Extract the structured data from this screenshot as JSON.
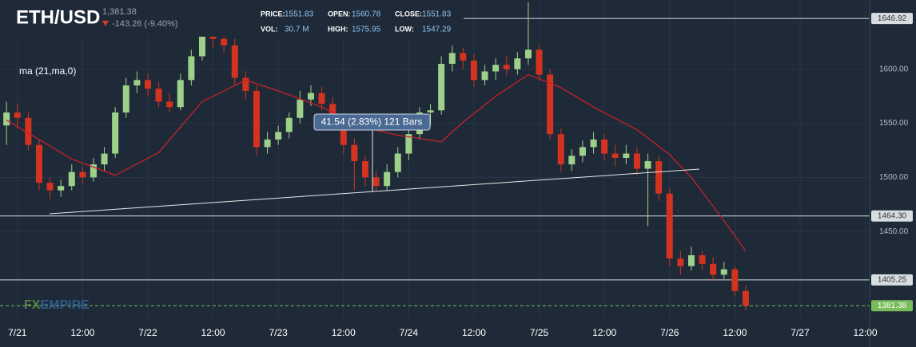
{
  "header": {
    "symbol": "ETH/USD",
    "last": "1,381.38",
    "change": "-143.26 (-9.40%)",
    "stats": [
      {
        "label": "PRICE:",
        "value": "1551.83"
      },
      {
        "label": "OPEN:",
        "value": "1560.78"
      },
      {
        "label": "CLOSE:",
        "value": "1551.83"
      },
      {
        "label": "VOL:",
        "value": "30.7 M"
      },
      {
        "label": "HIGH:",
        "value": "1575.95"
      },
      {
        "label": "LOW:",
        "value": "1547.29"
      }
    ]
  },
  "watermark": [
    "FX",
    "EMPIRE"
  ],
  "measure": "41.54 (2.83%) 121 Bars",
  "chart_data": {
    "type": "candlestick",
    "up_color": "#9fd08a",
    "down_color": "#d3331f",
    "open": [
      1548,
      1560,
      1555,
      1530,
      1495,
      1488,
      1492,
      1505,
      1500,
      1512,
      1522,
      1560,
      1585,
      1590,
      1582,
      1570,
      1565,
      1590,
      1612,
      1632,
      1628,
      1622,
      1592,
      1580,
      1528,
      1535,
      1542,
      1555,
      1572,
      1578,
      1568,
      1552,
      1530,
      1515,
      1500,
      1492,
      1505,
      1522,
      1540,
      1560,
      1562,
      1605,
      1615,
      1608,
      1590,
      1598,
      1604,
      1600,
      1610,
      1618,
      1595,
      1540,
      1512,
      1520,
      1528,
      1535,
      1522,
      1518,
      1522,
      1508,
      1515,
      1485,
      1425,
      1418,
      1428,
      1420,
      1410,
      1415,
      1395
    ],
    "high": [
      1570,
      1568,
      1560,
      1535,
      1500,
      1498,
      1512,
      1510,
      1518,
      1528,
      1565,
      1592,
      1598,
      1596,
      1588,
      1578,
      1596,
      1618,
      1640,
      1642,
      1636,
      1628,
      1598,
      1585,
      1542,
      1548,
      1560,
      1580,
      1585,
      1584,
      1574,
      1558,
      1536,
      1520,
      1506,
      1512,
      1528,
      1545,
      1565,
      1568,
      1612,
      1622,
      1620,
      1614,
      1604,
      1610,
      1612,
      1616,
      1662,
      1622,
      1600,
      1545,
      1526,
      1534,
      1542,
      1540,
      1530,
      1530,
      1528,
      1522,
      1520,
      1490,
      1432,
      1436,
      1432,
      1426,
      1422,
      1418,
      1400
    ],
    "low": [
      1530,
      1545,
      1525,
      1488,
      1480,
      1482,
      1488,
      1494,
      1496,
      1506,
      1518,
      1555,
      1578,
      1575,
      1565,
      1560,
      1562,
      1585,
      1608,
      1620,
      1615,
      1585,
      1572,
      1520,
      1522,
      1530,
      1536,
      1550,
      1566,
      1562,
      1545,
      1522,
      1488,
      1492,
      1488,
      1488,
      1500,
      1516,
      1535,
      1548,
      1558,
      1598,
      1600,
      1584,
      1585,
      1590,
      1594,
      1595,
      1604,
      1590,
      1535,
      1505,
      1506,
      1514,
      1522,
      1516,
      1510,
      1512,
      1502,
      1455,
      1478,
      1418,
      1410,
      1414,
      1415,
      1404,
      1406,
      1390,
      1377
    ],
    "close": [
      1560,
      1555,
      1530,
      1495,
      1488,
      1492,
      1505,
      1500,
      1512,
      1522,
      1560,
      1585,
      1590,
      1582,
      1570,
      1565,
      1590,
      1612,
      1632,
      1628,
      1622,
      1592,
      1580,
      1528,
      1535,
      1542,
      1555,
      1572,
      1578,
      1568,
      1552,
      1530,
      1515,
      1500,
      1492,
      1505,
      1522,
      1540,
      1560,
      1562,
      1605,
      1615,
      1608,
      1590,
      1598,
      1604,
      1600,
      1610,
      1618,
      1595,
      1540,
      1512,
      1520,
      1528,
      1535,
      1522,
      1518,
      1522,
      1508,
      1515,
      1485,
      1425,
      1418,
      1428,
      1420,
      1410,
      1415,
      1395,
      1381.38
    ],
    "series": [
      {
        "name": "ma (21,ma,0)",
        "color": "#c8202a",
        "x": [
          0,
          6,
          10,
          14,
          18,
          22,
          25,
          29,
          33,
          36,
          40,
          42,
          45,
          48,
          51,
          54,
          58,
          61,
          63,
          66,
          68
        ],
        "values": [
          1553,
          1517,
          1502,
          1523,
          1570,
          1590,
          1580,
          1565,
          1546,
          1539,
          1533,
          1551,
          1575,
          1595,
          1583,
          1565,
          1544,
          1521,
          1500,
          1460,
          1432
        ]
      }
    ],
    "levels": [
      1646.92,
      {
        "value": 1464.3,
        "label": "1464.30"
      },
      1405.25
    ],
    "last_price": 1381.38,
    "last_color": "#79bd5a",
    "xlim": [
      -0.6,
      79.4
    ],
    "ylim": [
      1369,
      1664
    ],
    "xticks": [
      {
        "value": 1,
        "label": "7/21"
      },
      {
        "value": 7,
        "label": "12:00"
      },
      {
        "value": 13,
        "label": "7/22"
      },
      {
        "value": 19,
        "label": "12:00"
      },
      {
        "value": 25,
        "label": "7/23"
      },
      {
        "value": 31,
        "label": "12:00"
      },
      {
        "value": 37,
        "label": "7/24"
      },
      {
        "value": 43,
        "label": "12:00"
      },
      {
        "value": 49,
        "label": "7/25"
      },
      {
        "value": 55,
        "label": "12:00"
      },
      {
        "value": 61,
        "label": "7/26"
      },
      {
        "value": 67,
        "label": "12:00"
      },
      {
        "value": 73,
        "label": "7/27"
      },
      {
        "value": 79,
        "label": "12:00"
      }
    ],
    "yticks": [
      {
        "value": 1600,
        "label": "1600.00"
      },
      {
        "value": 1550,
        "label": "1550.00"
      },
      {
        "value": 1500,
        "label": "1500.00"
      },
      {
        "value": 1450,
        "label": "1450.00"
      }
    ],
    "grid": true
  }
}
